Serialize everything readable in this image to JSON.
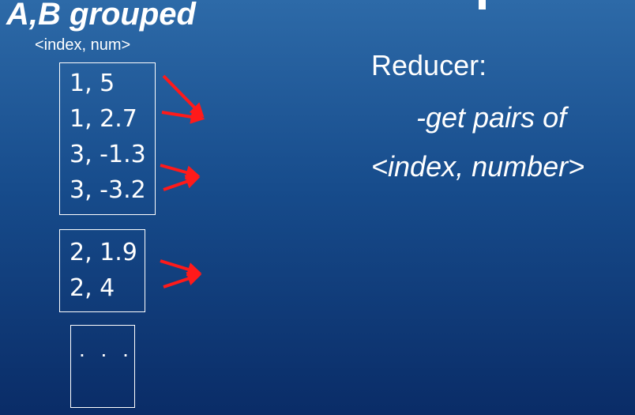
{
  "header": {
    "title": "A,B grouped",
    "subtitle": "<index, num>"
  },
  "groups": [
    {
      "pairs": [
        "1, 5",
        "1, 2.7",
        "3, -1.3",
        "3, -3.2"
      ]
    },
    {
      "pairs": [
        "2, 1.9",
        "2, 4"
      ]
    },
    {
      "ellipsis": ". . ."
    }
  ],
  "reducer": {
    "heading": "Reducer:",
    "lines": [
      "-get pairs of",
      "<index, number>"
    ]
  },
  "colors": {
    "arrow": "#ff1a1a",
    "text": "#ffffff",
    "background_top": "#2d6aa8",
    "background_bottom": "#0a2c67"
  }
}
